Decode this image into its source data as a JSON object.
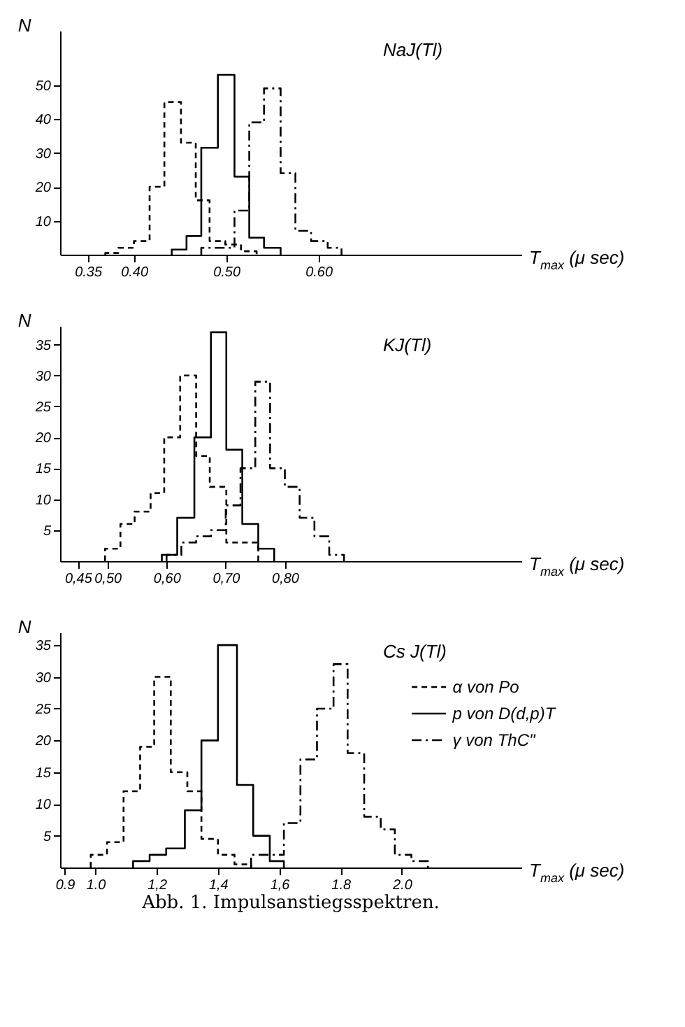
{
  "chart_data": [
    {
      "type": "step",
      "title": "NaJ(Tl)",
      "xlabel": "T$_{max}$ (μ sec)",
      "ylabel": "N",
      "xlim": [
        0.32,
        0.82
      ],
      "xticks": [
        {
          "value": 0.35,
          "label": "0.35"
        },
        {
          "value": 0.4,
          "label": "0.40"
        },
        {
          "value": 0.5,
          "label": "0.50"
        },
        {
          "value": 0.6,
          "label": "0.60"
        }
      ],
      "ylim": [
        0,
        66
      ],
      "yticks": [
        10,
        20,
        30,
        40,
        50
      ],
      "series": [
        {
          "color": "#000000",
          "line_style": "dashed",
          "x": [
            0.369,
            0.369,
            0.383,
            0.4,
            0.417,
            0.433,
            0.451,
            0.467,
            0.482,
            0.499,
            0.516,
            0.533
          ],
          "values": [
            0,
            0.5,
            2,
            4,
            20,
            45,
            33,
            16,
            4,
            3,
            1,
            0
          ]
        },
        {
          "color": "#000000",
          "line_style": "solid",
          "x": [
            0.441,
            0.441,
            0.457,
            0.473,
            0.491,
            0.509,
            0.525,
            0.541,
            0.559
          ],
          "values": [
            0,
            1.5,
            5.5,
            31.5,
            53,
            23,
            5,
            2,
            0
          ]
        },
        {
          "color": "#000000",
          "line_style": "dashdot",
          "x": [
            0.473,
            0.473,
            0.491,
            0.509,
            0.525,
            0.541,
            0.559,
            0.575,
            0.592,
            0.61,
            0.625
          ],
          "values": [
            0,
            2,
            2,
            13,
            39,
            49,
            24,
            7,
            4,
            2,
            0
          ]
        }
      ]
    },
    {
      "type": "step",
      "title": "KJ(Tl)",
      "xlabel": "T$_{max}$ (μ sec)",
      "ylabel": "N",
      "xlim": [
        0.42,
        1.2
      ],
      "xticks": [
        {
          "value": 0.45,
          "label": "0,45"
        },
        {
          "value": 0.5,
          "label": "0,50"
        },
        {
          "value": 0.6,
          "label": "0,60"
        },
        {
          "value": 0.7,
          "label": "0,70"
        },
        {
          "value": 0.8,
          "label": "0,80"
        }
      ],
      "ylim": [
        0,
        38
      ],
      "yticks": [
        5,
        10,
        15,
        20,
        25,
        30,
        35
      ],
      "series": [
        {
          "color": "#000000",
          "line_style": "dashed",
          "x": [
            0.496,
            0.496,
            0.522,
            0.546,
            0.573,
            0.596,
            0.623,
            0.65,
            0.673,
            0.701,
            0.728,
            0.755
          ],
          "values": [
            0,
            2,
            6,
            8,
            11,
            20,
            30,
            17,
            12,
            3,
            3,
            0
          ]
        },
        {
          "color": "#000000",
          "line_style": "solid",
          "x": [
            0.592,
            0.592,
            0.618,
            0.647,
            0.675,
            0.701,
            0.728,
            0.755,
            0.782
          ],
          "values": [
            0,
            1,
            7,
            20,
            37,
            18,
            6,
            2,
            0
          ]
        },
        {
          "color": "#000000",
          "line_style": "dashdot",
          "x": [
            0.6,
            0.6,
            0.625,
            0.65,
            0.675,
            0.7,
            0.725,
            0.75,
            0.775,
            0.8,
            0.825,
            0.85,
            0.875,
            0.9
          ],
          "values": [
            0,
            1,
            3,
            4,
            5,
            9,
            15,
            29,
            15,
            12,
            7,
            4,
            1,
            0
          ]
        }
      ]
    },
    {
      "type": "step",
      "title": "Cs J(Tl)",
      "xlabel": "T$_{max}$ (μ sec)",
      "ylabel": "N",
      "xlim": [
        0.885,
        2.39
      ],
      "xticks": [
        {
          "value": 0.9,
          "label": "0.9"
        },
        {
          "value": 1.0,
          "label": "1.0"
        },
        {
          "value": 1.2,
          "label": "1,2"
        },
        {
          "value": 1.4,
          "label": "1,4"
        },
        {
          "value": 1.6,
          "label": "1,6"
        },
        {
          "value": 1.8,
          "label": "1.8"
        },
        {
          "value": 2.0,
          "label": "2.0"
        }
      ],
      "ylim": [
        0,
        37
      ],
      "yticks": [
        5,
        10,
        15,
        20,
        25,
        30,
        35
      ],
      "legend": "top right",
      "annotations": [
        "Abb. 1. Impulsanstiegsspektren."
      ],
      "series": [
        {
          "name": "α von Po",
          "color": "#000000",
          "line_style": "dashed",
          "x": [
            0.985,
            0.985,
            1.038,
            1.092,
            1.146,
            1.192,
            1.246,
            1.3,
            1.346,
            1.4,
            1.454,
            1.508
          ],
          "values": [
            0,
            2,
            4,
            12,
            19,
            30,
            15,
            12,
            4.5,
            2,
            0.5,
            0
          ]
        },
        {
          "name": "p von D(d,p)T",
          "color": "#000000",
          "line_style": "solid",
          "x": [
            1.123,
            1.123,
            1.177,
            1.231,
            1.292,
            1.346,
            1.4,
            1.462,
            1.515,
            1.569,
            1.615
          ],
          "values": [
            0,
            1,
            2,
            3,
            9,
            20,
            35,
            13,
            5,
            1,
            0
          ]
        },
        {
          "name": "γ von ThC\"",
          "color": "#000000",
          "line_style": "dashdot",
          "x": [
            1.508,
            1.508,
            1.562,
            1.615,
            1.669,
            1.723,
            1.777,
            1.823,
            1.877,
            1.931,
            1.977,
            2.031,
            2.085
          ],
          "values": [
            0,
            2,
            2,
            7,
            17,
            25,
            32,
            18,
            8,
            6,
            2,
            1,
            0
          ]
        }
      ]
    }
  ]
}
